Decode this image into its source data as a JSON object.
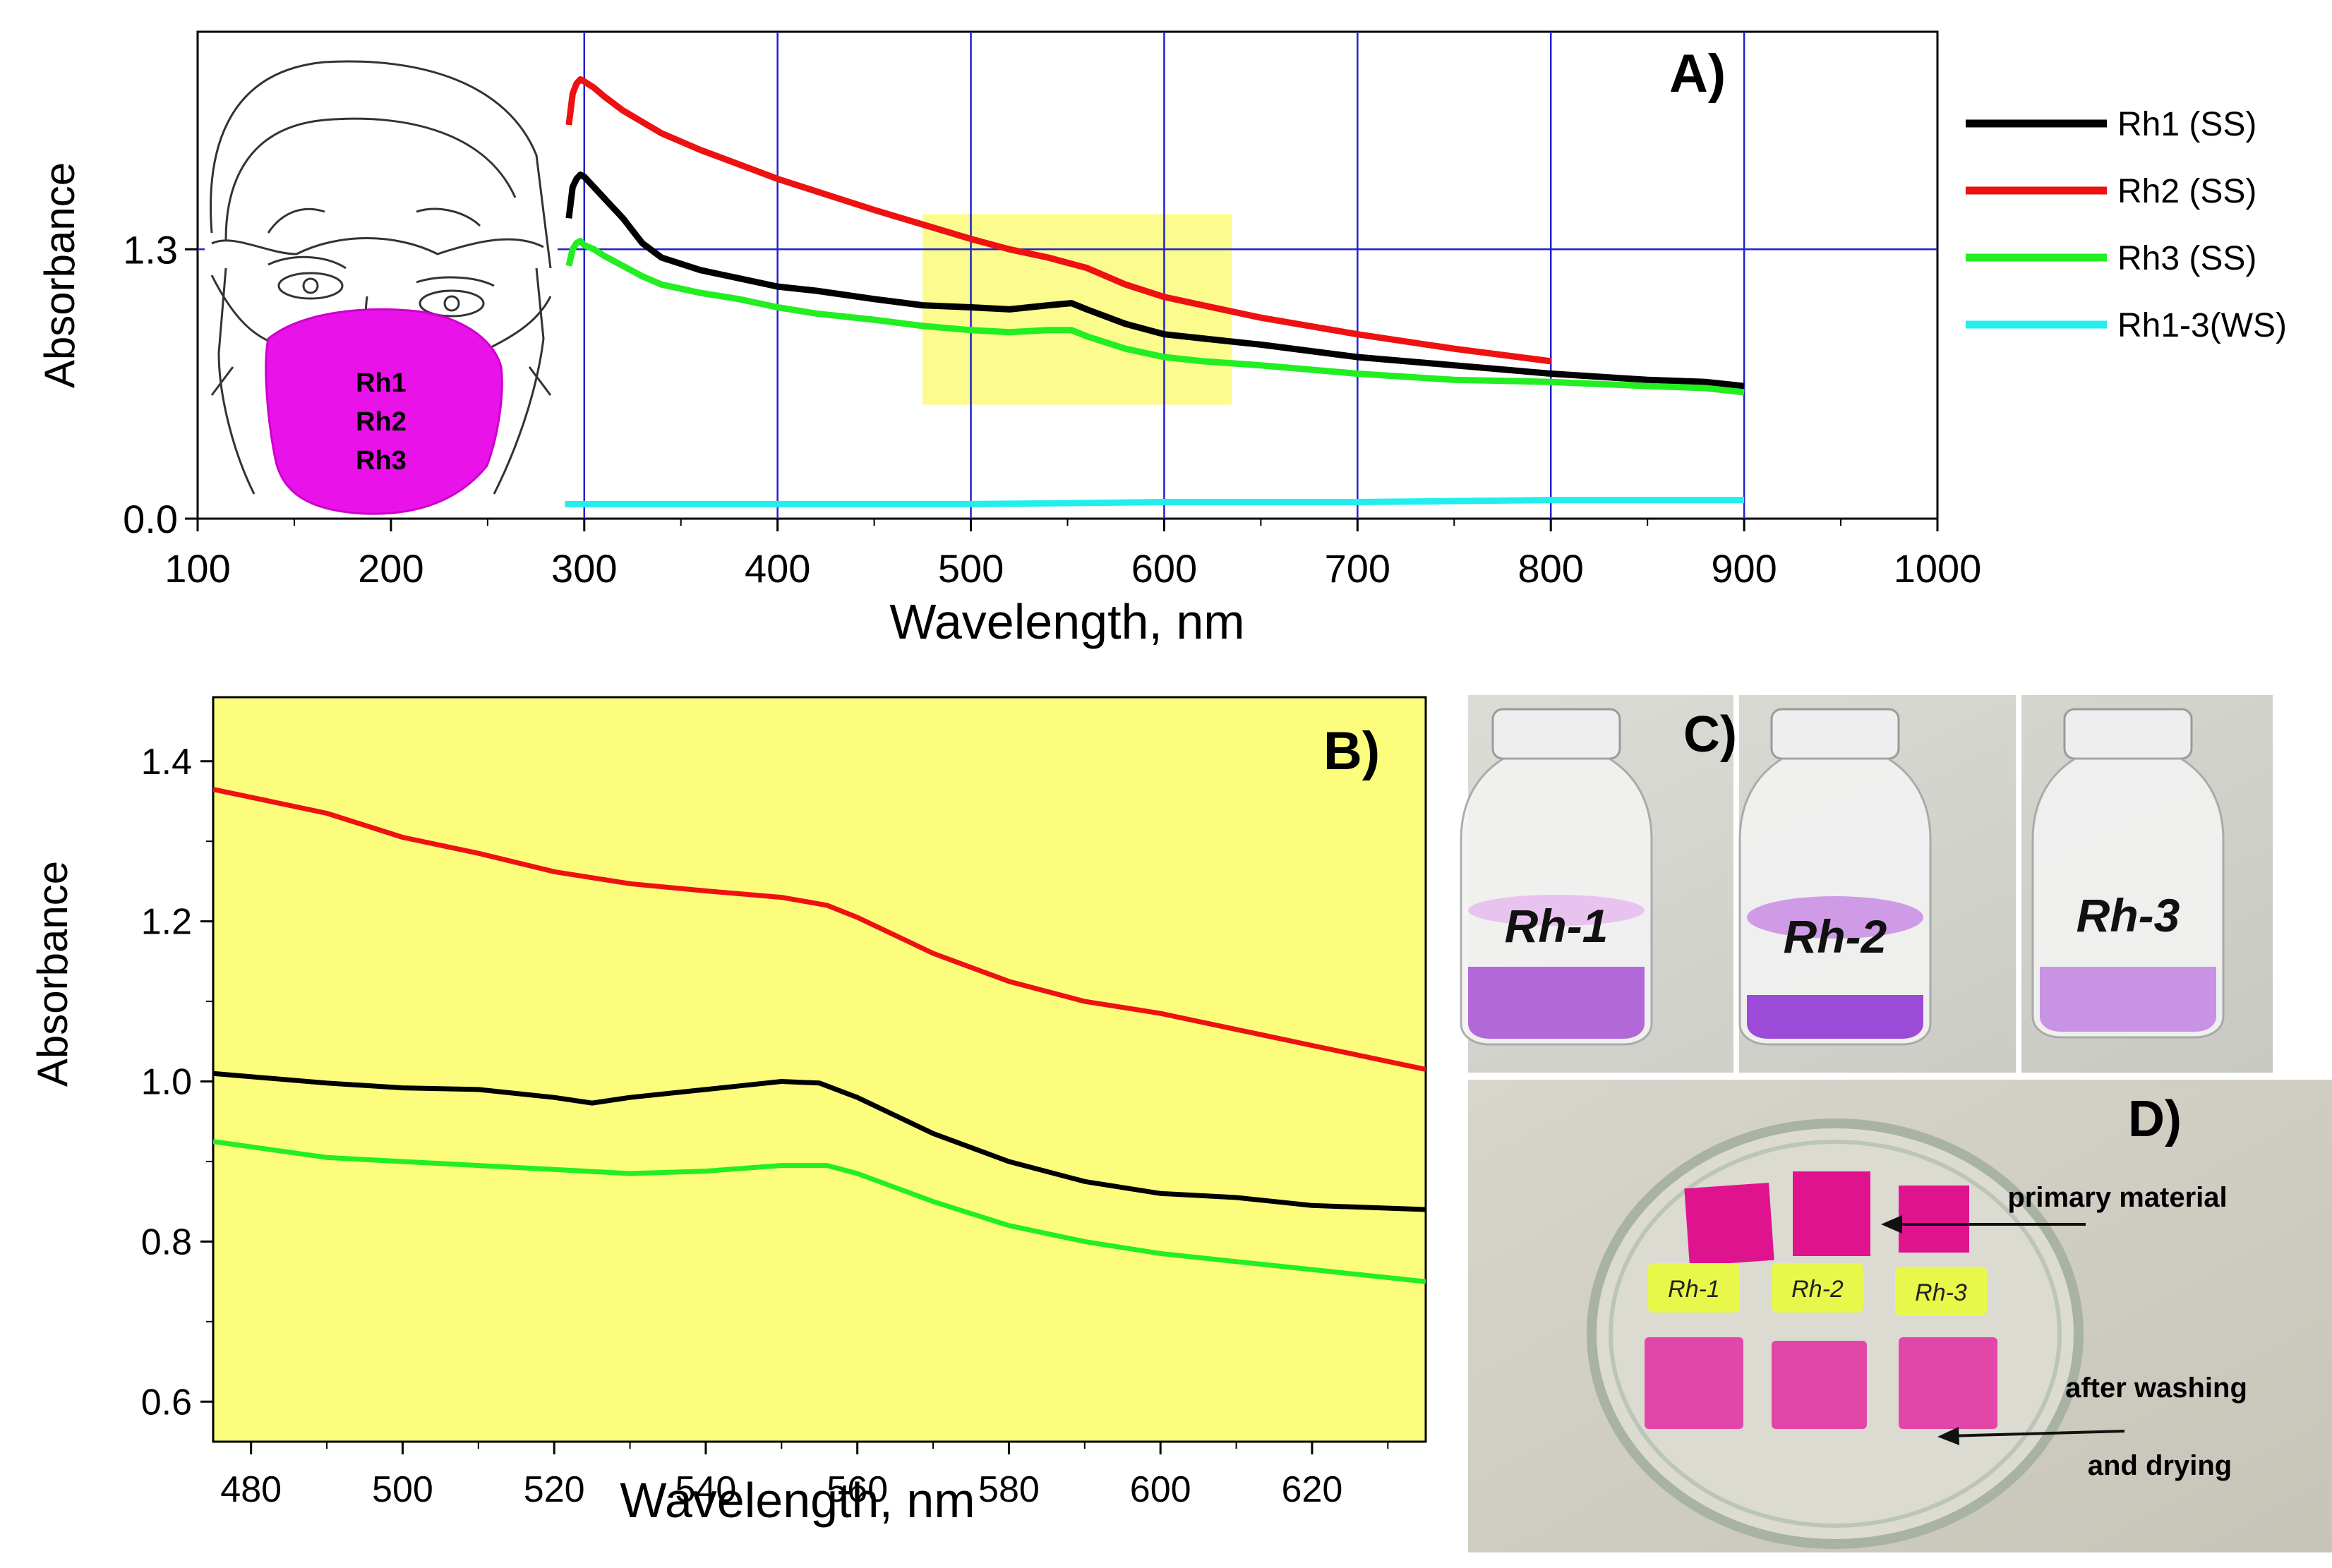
{
  "chart_data": [
    {
      "id": "A",
      "type": "line",
      "panel_label": "A)",
      "xlabel": "Wavelength, nm",
      "ylabel": "Absorbance",
      "xlim": [
        100,
        1000
      ],
      "ylim": [
        0,
        2.35
      ],
      "x_ticks": [
        100,
        200,
        300,
        400,
        500,
        600,
        700,
        800,
        900,
        1000
      ],
      "y_ticks": [
        0.0,
        1.3
      ],
      "y_tick_labels": [
        "0.0",
        "1.3"
      ],
      "grid": true,
      "legend_position": "right",
      "highlight_region": {
        "x": [
          475,
          635
        ],
        "y": [
          0.55,
          1.47
        ],
        "color": "#fbfb7a"
      },
      "inset_image": {
        "description": "face with protective mask",
        "mask_text": [
          "Rh1",
          "Rh2",
          "Rh3"
        ]
      },
      "series": [
        {
          "name": "Rh1 (SS)",
          "color": "#000000",
          "x": [
            292,
            294,
            296,
            298,
            300,
            305,
            310,
            320,
            330,
            340,
            360,
            380,
            400,
            420,
            450,
            475,
            500,
            520,
            540,
            552,
            560,
            580,
            600,
            620,
            650,
            700,
            750,
            800,
            850,
            880,
            900
          ],
          "y": [
            1.45,
            1.6,
            1.64,
            1.66,
            1.65,
            1.6,
            1.55,
            1.45,
            1.33,
            1.26,
            1.2,
            1.16,
            1.12,
            1.1,
            1.06,
            1.03,
            1.02,
            1.01,
            1.03,
            1.04,
            1.01,
            0.94,
            0.89,
            0.87,
            0.84,
            0.78,
            0.74,
            0.7,
            0.67,
            0.66,
            0.64
          ]
        },
        {
          "name": "Rh2 (SS)",
          "color": "#ee1111",
          "x": [
            292,
            294,
            296,
            298,
            300,
            305,
            310,
            320,
            340,
            360,
            380,
            400,
            420,
            450,
            475,
            500,
            520,
            540,
            552,
            560,
            580,
            600,
            620,
            650,
            700,
            750,
            800
          ],
          "y": [
            1.9,
            2.05,
            2.1,
            2.12,
            2.11,
            2.08,
            2.04,
            1.97,
            1.86,
            1.78,
            1.71,
            1.64,
            1.58,
            1.49,
            1.42,
            1.35,
            1.3,
            1.26,
            1.23,
            1.21,
            1.13,
            1.07,
            1.03,
            0.97,
            0.89,
            0.82,
            0.76
          ]
        },
        {
          "name": "Rh3 (SS)",
          "color": "#22ee22",
          "x": [
            292,
            294,
            296,
            298,
            300,
            305,
            310,
            320,
            330,
            340,
            360,
            380,
            400,
            420,
            450,
            475,
            500,
            520,
            540,
            552,
            560,
            580,
            600,
            620,
            650,
            700,
            750,
            800,
            850,
            880,
            900
          ],
          "y": [
            1.22,
            1.3,
            1.33,
            1.34,
            1.32,
            1.3,
            1.27,
            1.22,
            1.17,
            1.13,
            1.09,
            1.06,
            1.02,
            0.99,
            0.96,
            0.93,
            0.91,
            0.9,
            0.91,
            0.91,
            0.88,
            0.82,
            0.78,
            0.76,
            0.74,
            0.7,
            0.67,
            0.66,
            0.64,
            0.63,
            0.61
          ]
        },
        {
          "name": "Rh1-3(WS)",
          "color": "#22eeee",
          "x": [
            290,
            400,
            500,
            600,
            700,
            800,
            900
          ],
          "y": [
            0.07,
            0.07,
            0.07,
            0.08,
            0.08,
            0.09,
            0.09
          ]
        }
      ]
    },
    {
      "id": "B",
      "type": "line",
      "panel_label": "B)",
      "xlabel": "Wavelength, nm",
      "ylabel": "Absorbance",
      "xlim": [
        475,
        635
      ],
      "ylim": [
        0.55,
        1.48
      ],
      "x_ticks": [
        480,
        500,
        520,
        540,
        560,
        580,
        600,
        620
      ],
      "y_ticks": [
        0.6,
        0.8,
        1.0,
        1.2,
        1.4
      ],
      "y_tick_labels": [
        "0.6",
        "0.8",
        "1.0",
        "1.2",
        "1.4"
      ],
      "background": "#fdfd7d",
      "grid": false,
      "series": [
        {
          "name": "Rh2 (SS)",
          "color": "#ee1111",
          "x": [
            475,
            490,
            500,
            510,
            520,
            530,
            540,
            550,
            556,
            560,
            570,
            580,
            590,
            600,
            610,
            620,
            635
          ],
          "y": [
            1.365,
            1.335,
            1.305,
            1.285,
            1.262,
            1.247,
            1.238,
            1.23,
            1.22,
            1.205,
            1.16,
            1.125,
            1.1,
            1.085,
            1.065,
            1.045,
            1.015
          ]
        },
        {
          "name": "Rh1 (SS)",
          "color": "#000000",
          "x": [
            475,
            490,
            500,
            510,
            520,
            525,
            530,
            540,
            545,
            550,
            555,
            560,
            570,
            580,
            590,
            600,
            610,
            620,
            635
          ],
          "y": [
            1.01,
            0.998,
            0.992,
            0.99,
            0.98,
            0.973,
            0.98,
            0.99,
            0.995,
            1.0,
            0.998,
            0.98,
            0.935,
            0.9,
            0.875,
            0.86,
            0.855,
            0.845,
            0.84
          ]
        },
        {
          "name": "Rh3 (SS)",
          "color": "#22ee22",
          "x": [
            475,
            490,
            500,
            510,
            520,
            530,
            540,
            550,
            556,
            560,
            570,
            580,
            590,
            600,
            610,
            620,
            635
          ],
          "y": [
            0.925,
            0.905,
            0.9,
            0.895,
            0.89,
            0.885,
            0.888,
            0.895,
            0.895,
            0.885,
            0.85,
            0.82,
            0.8,
            0.785,
            0.775,
            0.765,
            0.75
          ]
        }
      ]
    }
  ],
  "panel_c": {
    "label": "C)",
    "vials": [
      {
        "label": "Rh-1",
        "liquid_color": "#b268d8"
      },
      {
        "label": "Rh-2",
        "liquid_color": "#9c4ad8"
      },
      {
        "label": "Rh-3",
        "liquid_color": "#c893e4"
      }
    ]
  },
  "panel_d": {
    "label": "D)",
    "sample_labels": [
      "Rh-1",
      "Rh-2",
      "Rh-3"
    ],
    "annotation_top": "primary material",
    "annotation_bottom_1": "after washing",
    "annotation_bottom_2": "and drying",
    "fabric_color": "#e0138e",
    "washed_fabric_color": "#e23ba4",
    "label_color": "#e8f84a"
  }
}
